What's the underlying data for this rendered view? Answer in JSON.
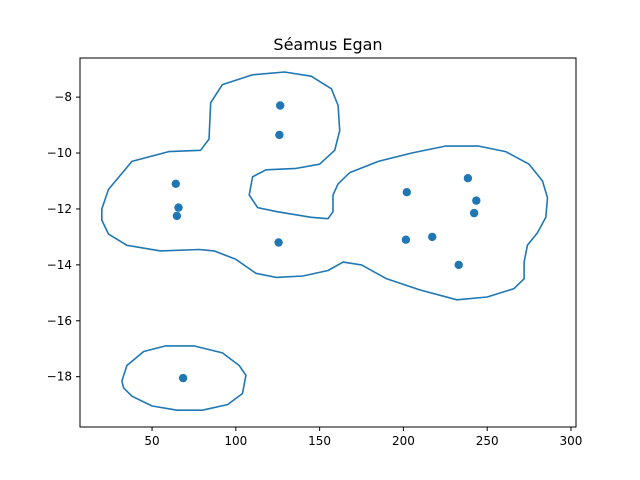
{
  "chart_data": {
    "type": "scatter",
    "title": "Séamus Egan",
    "xlim": [
      7,
      303
    ],
    "ylim": [
      -19.8,
      -6.6
    ],
    "xticks": [
      50,
      100,
      150,
      200,
      250,
      300
    ],
    "yticks": [
      -8,
      -10,
      -12,
      -14,
      -16,
      -18
    ],
    "color": "#1f77b4",
    "points": [
      {
        "x": 126.5,
        "y": -8.3
      },
      {
        "x": 126.0,
        "y": -9.35
      },
      {
        "x": 64.2,
        "y": -11.1
      },
      {
        "x": 65.8,
        "y": -11.95
      },
      {
        "x": 64.8,
        "y": -12.25
      },
      {
        "x": 125.5,
        "y": -13.2
      },
      {
        "x": 238.5,
        "y": -10.9
      },
      {
        "x": 202.0,
        "y": -11.4
      },
      {
        "x": 243.5,
        "y": -11.7
      },
      {
        "x": 242.2,
        "y": -12.15
      },
      {
        "x": 201.5,
        "y": -13.1
      },
      {
        "x": 217.2,
        "y": -13.0
      },
      {
        "x": 233.0,
        "y": -14.0
      },
      {
        "x": 68.5,
        "y": -18.05
      }
    ],
    "contours": [
      [
        [
          20,
          -12
        ],
        [
          24,
          -11.3
        ],
        [
          38,
          -10.3
        ],
        [
          60,
          -9.95
        ],
        [
          79,
          -9.9
        ],
        [
          84,
          -9.5
        ],
        [
          85,
          -8.2
        ],
        [
          92,
          -7.55
        ],
        [
          110,
          -7.2
        ],
        [
          129,
          -7.1
        ],
        [
          145,
          -7.25
        ],
        [
          157,
          -7.7
        ],
        [
          161,
          -8.3
        ],
        [
          162,
          -9.2
        ],
        [
          159,
          -9.9
        ],
        [
          150,
          -10.4
        ],
        [
          136,
          -10.55
        ],
        [
          118,
          -10.6
        ],
        [
          110,
          -10.85
        ],
        [
          108,
          -11.5
        ],
        [
          113,
          -11.95
        ],
        [
          125,
          -12.1
        ],
        [
          145,
          -12.3
        ],
        [
          155,
          -12.35
        ],
        [
          158,
          -12.1
        ],
        [
          158,
          -11.5
        ],
        [
          161,
          -11.1
        ],
        [
          168,
          -10.7
        ],
        [
          185,
          -10.3
        ],
        [
          205,
          -10.0
        ],
        [
          225,
          -9.75
        ],
        [
          245,
          -9.75
        ],
        [
          261,
          -9.95
        ],
        [
          275,
          -10.4
        ],
        [
          283,
          -11.0
        ],
        [
          286,
          -11.6
        ],
        [
          285,
          -12.3
        ],
        [
          280,
          -12.85
        ],
        [
          274,
          -13.3
        ],
        [
          272,
          -13.9
        ],
        [
          272,
          -14.5
        ],
        [
          266,
          -14.85
        ],
        [
          250,
          -15.15
        ],
        [
          232,
          -15.25
        ],
        [
          210,
          -14.9
        ],
        [
          190,
          -14.5
        ],
        [
          175,
          -14.0
        ],
        [
          164,
          -13.9
        ],
        [
          155,
          -14.2
        ],
        [
          140,
          -14.4
        ],
        [
          124,
          -14.45
        ],
        [
          112,
          -14.3
        ],
        [
          100,
          -13.8
        ],
        [
          87,
          -13.5
        ],
        [
          78,
          -13.45
        ],
        [
          55,
          -13.5
        ],
        [
          35,
          -13.3
        ],
        [
          24,
          -12.9
        ],
        [
          20,
          -12.4
        ],
        [
          20,
          -12
        ]
      ],
      [
        [
          32,
          -18.15
        ],
        [
          35,
          -17.6
        ],
        [
          45,
          -17.1
        ],
        [
          58,
          -16.9
        ],
        [
          75,
          -16.9
        ],
        [
          92,
          -17.15
        ],
        [
          102,
          -17.6
        ],
        [
          106,
          -17.95
        ],
        [
          104,
          -18.6
        ],
        [
          95,
          -19.0
        ],
        [
          80,
          -19.2
        ],
        [
          65,
          -19.2
        ],
        [
          50,
          -19.05
        ],
        [
          38,
          -18.7
        ],
        [
          33,
          -18.4
        ],
        [
          32,
          -18.15
        ]
      ]
    ]
  }
}
